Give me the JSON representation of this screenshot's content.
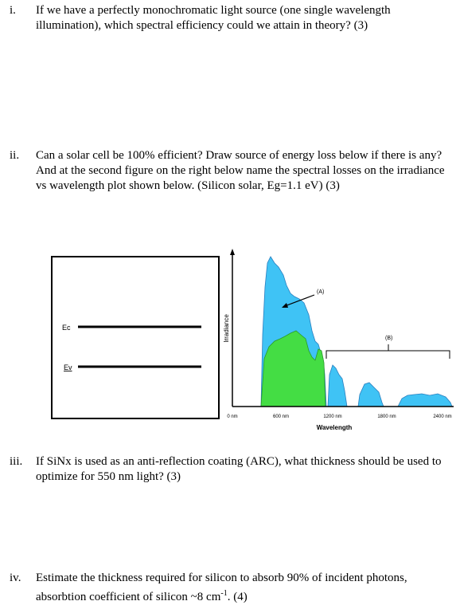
{
  "questions": [
    {
      "number": "i.",
      "text": "If we have a perfectly monochromatic light source (one single wavelength illumination), which spectral efficiency could we attain in theory? (3)"
    },
    {
      "number": "ii.",
      "text": "Can a solar cell be 100% efficient? Draw source of energy loss below if there is any? And at the second figure on the right below name the spectral losses on the irradiance vs wavelength plot shown below. (Silicon solar, Eg=1.1 eV) (3)"
    },
    {
      "number": "iii.",
      "text": "If SiNx is used as an anti-reflection coating (ARC), what thickness should be used to optimize for 550 nm light? (3)"
    },
    {
      "number": "iv.",
      "text": "Estimate the thickness required for silicon to absorb 90% of incident photons, absorbtion coefficient of silicon ~8 cm",
      "sup": "-1",
      "text_end": ". (4)"
    }
  ],
  "band_diagram": {
    "labels": [
      "Ec",
      "Ev"
    ]
  },
  "spectrum": {
    "y_label": "Irradiance",
    "x_label": "Wavelength",
    "x_ticks": [
      "0 nm",
      "600 nm",
      "1200 nm",
      "1800 nm",
      "2400 nm"
    ],
    "annotations": [
      "(A)",
      "(B)"
    ]
  }
}
